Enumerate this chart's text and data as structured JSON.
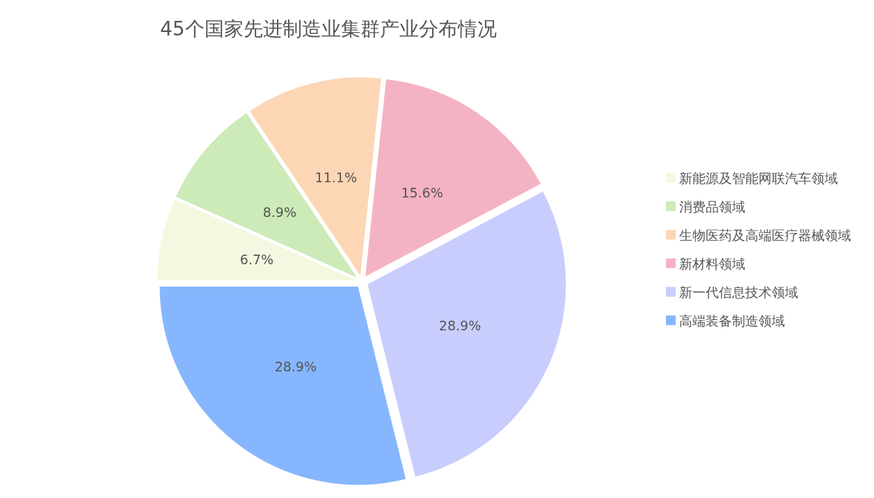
{
  "chart_data": {
    "type": "pie",
    "title": "45个国家先进制造业集群产业分布情况",
    "categories": [
      "新能源及智能网联汽车领域",
      "消费品领域",
      "生物医药及高端医疗器械领域",
      "新材料领域",
      "新一代信息技术领域",
      "高端装备制造领域"
    ],
    "values": [
      6.7,
      8.9,
      11.1,
      15.6,
      28.9,
      28.9
    ],
    "value_labels": [
      "6.7%",
      "8.9%",
      "11.1%",
      "15.6%",
      "28.9%",
      "28.9%"
    ],
    "colors": [
      "#f4f8e0",
      "#cdeab9",
      "#fdd6b5",
      "#f4b3c2",
      "#c8cdfd",
      "#86b6fd"
    ],
    "legend": "right"
  }
}
